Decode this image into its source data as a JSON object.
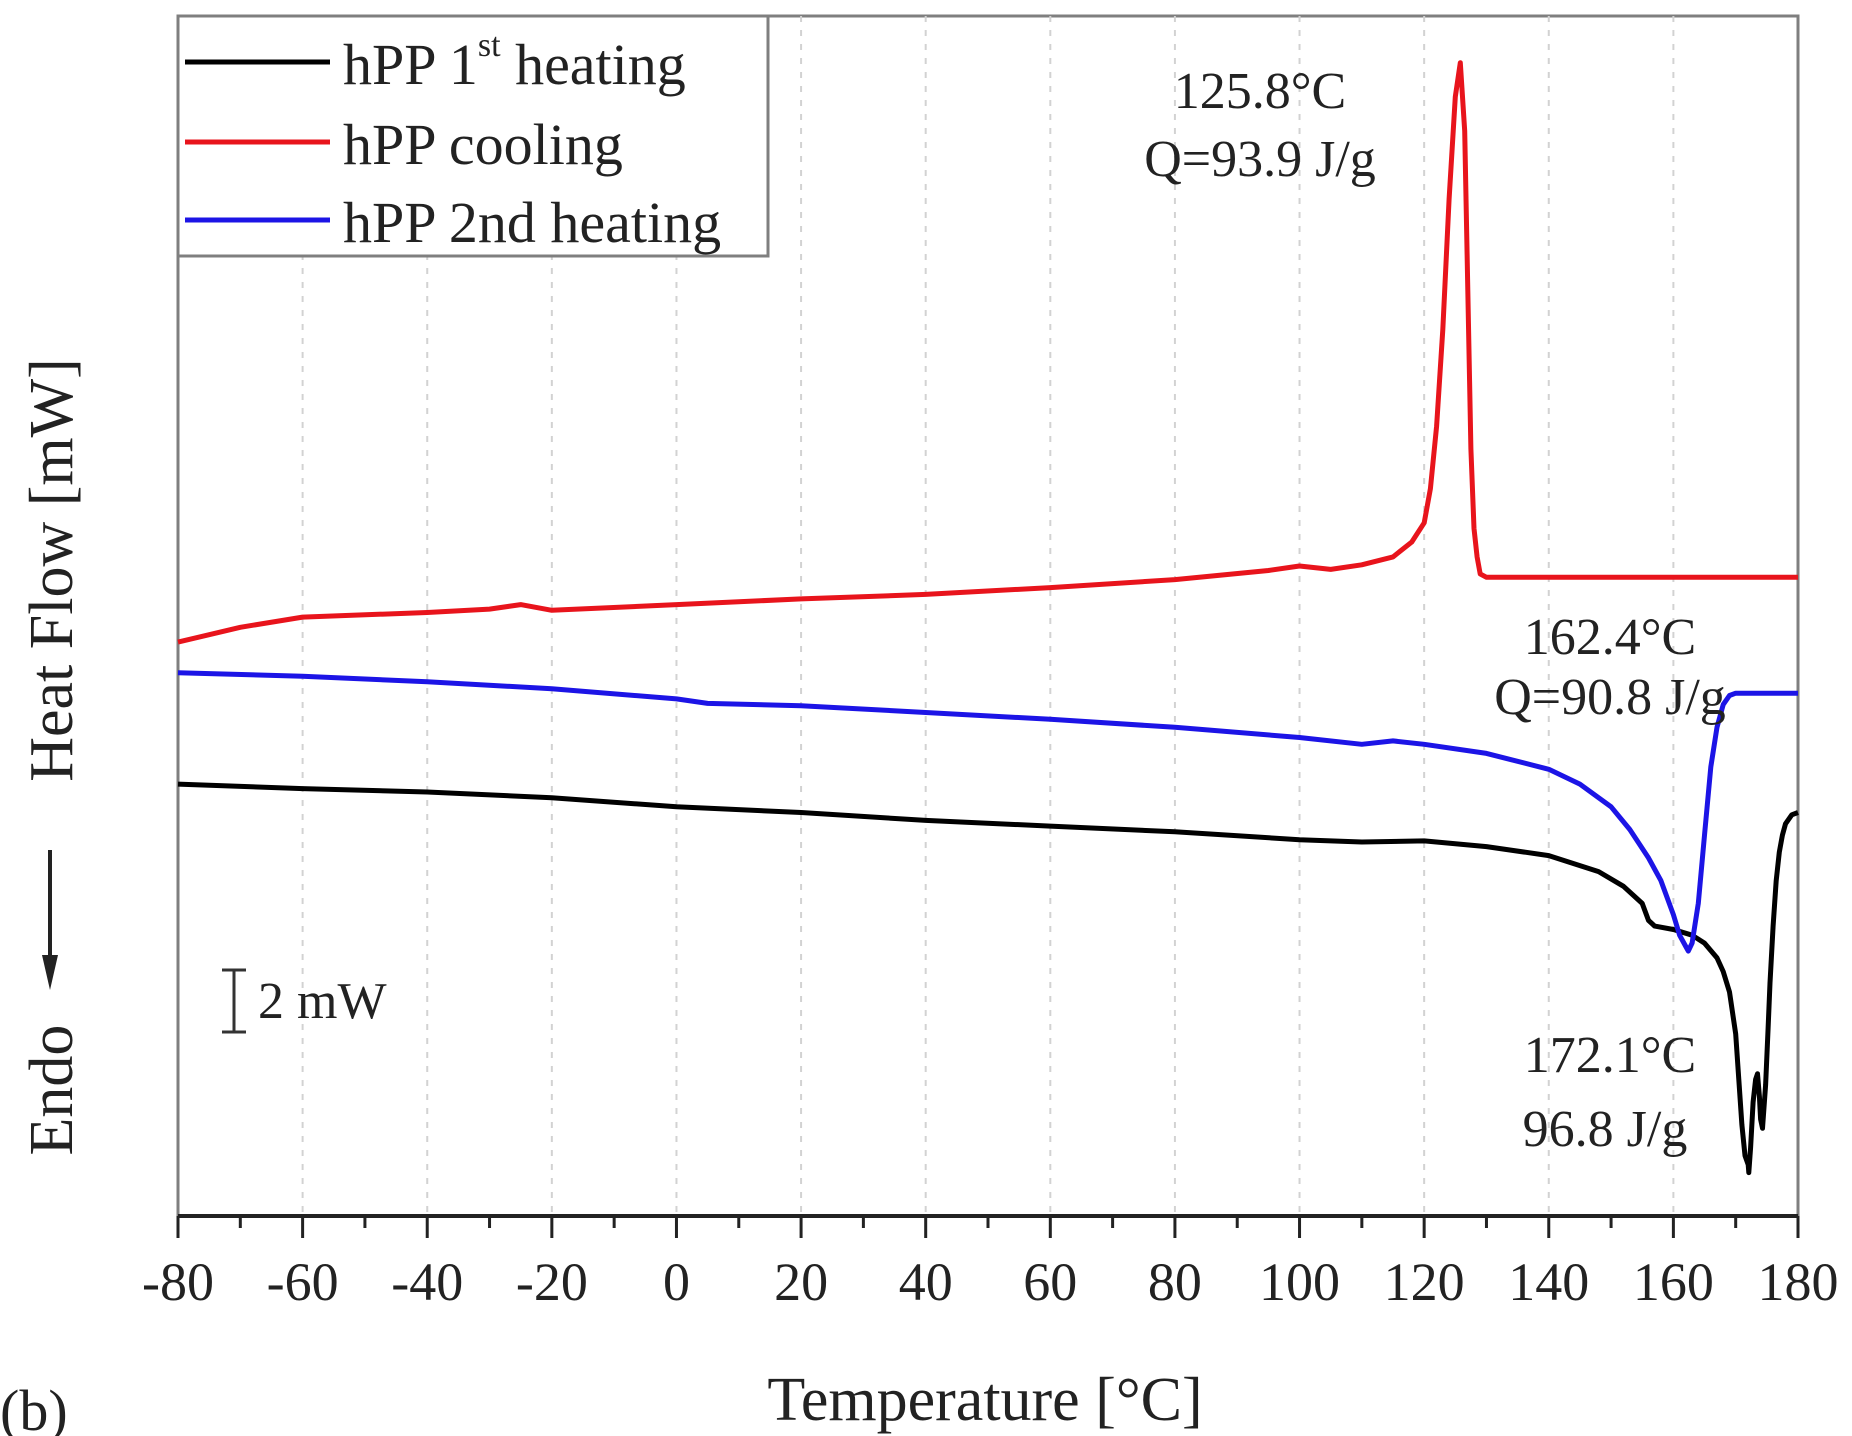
{
  "chart_data": {
    "type": "line",
    "panel_label": "(b)",
    "xlabel": "Temperature [°C]",
    "ylabel": "Heat Flow [mW]",
    "ylabel_endo": "Endo",
    "xlim": [
      -80,
      180
    ],
    "ylim": [
      0,
      100
    ],
    "x_ticks": [
      "-80",
      "-60",
      "-40",
      "-20",
      "0",
      "20",
      "40",
      "60",
      "80",
      "100",
      "120",
      "140",
      "160",
      "180"
    ],
    "grid": "vertical dashed",
    "legend_position": "top-left",
    "scale_bar_label": "2 mW",
    "series": [
      {
        "name": "hPP 1",
        "name_sup": "st",
        "name_rest": " heating",
        "color": "#000000",
        "x": [
          -80,
          -60,
          -40,
          -20,
          0,
          20,
          40,
          60,
          80,
          100,
          110,
          120,
          130,
          140,
          148,
          152,
          155,
          156,
          157,
          160,
          163,
          165,
          167,
          168,
          169,
          170,
          170.5,
          171,
          171.5,
          172,
          172.1,
          172.4,
          172.8,
          173.2,
          173.5,
          173.8,
          174,
          174.3,
          174.8,
          175.2,
          175.5,
          176,
          176.5,
          177,
          177.5,
          178,
          179,
          180
        ],
        "y": [
          34.5,
          34.1,
          33.8,
          33.3,
          32.5,
          32.0,
          31.3,
          30.8,
          30.3,
          29.6,
          29.4,
          29.5,
          29.0,
          28.2,
          26.8,
          25.5,
          24.0,
          22.5,
          22.0,
          21.7,
          21.2,
          20.5,
          19.2,
          18.0,
          16.2,
          12.5,
          8.5,
          4.5,
          1.8,
          1.0,
          0.3,
          2.5,
          6.5,
          8.5,
          9.0,
          7.0,
          5.0,
          4.2,
          8.0,
          13.0,
          17.0,
          22.0,
          26.0,
          28.5,
          30.0,
          31.0,
          31.8,
          32.0
        ]
      },
      {
        "name": "hPP cooling",
        "color": "#e8141c",
        "x": [
          -80,
          -70,
          -60,
          -40,
          -30,
          -25,
          -20,
          0,
          20,
          40,
          60,
          80,
          95,
          100,
          105,
          110,
          115,
          118,
          120,
          121,
          122,
          123,
          124,
          125,
          125.8,
          126.5,
          127,
          127.5,
          128,
          128.5,
          129,
          130,
          140,
          160,
          180
        ],
        "y": [
          47.0,
          48.3,
          49.2,
          49.6,
          49.9,
          50.3,
          49.8,
          50.3,
          50.8,
          51.2,
          51.8,
          52.5,
          53.3,
          53.7,
          53.4,
          53.8,
          54.5,
          55.8,
          57.5,
          60.5,
          66.0,
          74.5,
          86.0,
          95.0,
          98.0,
          92.0,
          78.0,
          64.0,
          57.0,
          54.5,
          53.0,
          52.7,
          52.7,
          52.7,
          52.7
        ]
      },
      {
        "name": "hPP 2nd heating",
        "color": "#1c14e6",
        "x": [
          -80,
          -60,
          -40,
          -20,
          0,
          5,
          20,
          40,
          60,
          80,
          100,
          110,
          115,
          120,
          130,
          140,
          145,
          150,
          153,
          156,
          158,
          160,
          161,
          162,
          162.4,
          163,
          164,
          165,
          166,
          167,
          168,
          169,
          170,
          175,
          180
        ],
        "y": [
          44.3,
          44.0,
          43.5,
          42.9,
          42.0,
          41.6,
          41.4,
          40.8,
          40.2,
          39.5,
          38.6,
          38.0,
          38.3,
          38.0,
          37.2,
          35.8,
          34.5,
          32.5,
          30.5,
          28.0,
          26.0,
          23.0,
          21.2,
          20.2,
          19.8,
          20.5,
          24.0,
          30.0,
          36.0,
          39.5,
          41.5,
          42.3,
          42.5,
          42.5,
          42.5
        ]
      }
    ],
    "annotations": [
      {
        "id": "cool-peak",
        "x": 125.8,
        "lines": [
          "125.8°C",
          "Q=93.9 J/g"
        ]
      },
      {
        "id": "second-peak",
        "x": 162.4,
        "lines": [
          "162.4°C",
          "Q=90.8 J/g"
        ]
      },
      {
        "id": "first-peak",
        "x": 172.1,
        "lines": [
          "172.1°C",
          "96.8 J/g"
        ]
      }
    ]
  }
}
